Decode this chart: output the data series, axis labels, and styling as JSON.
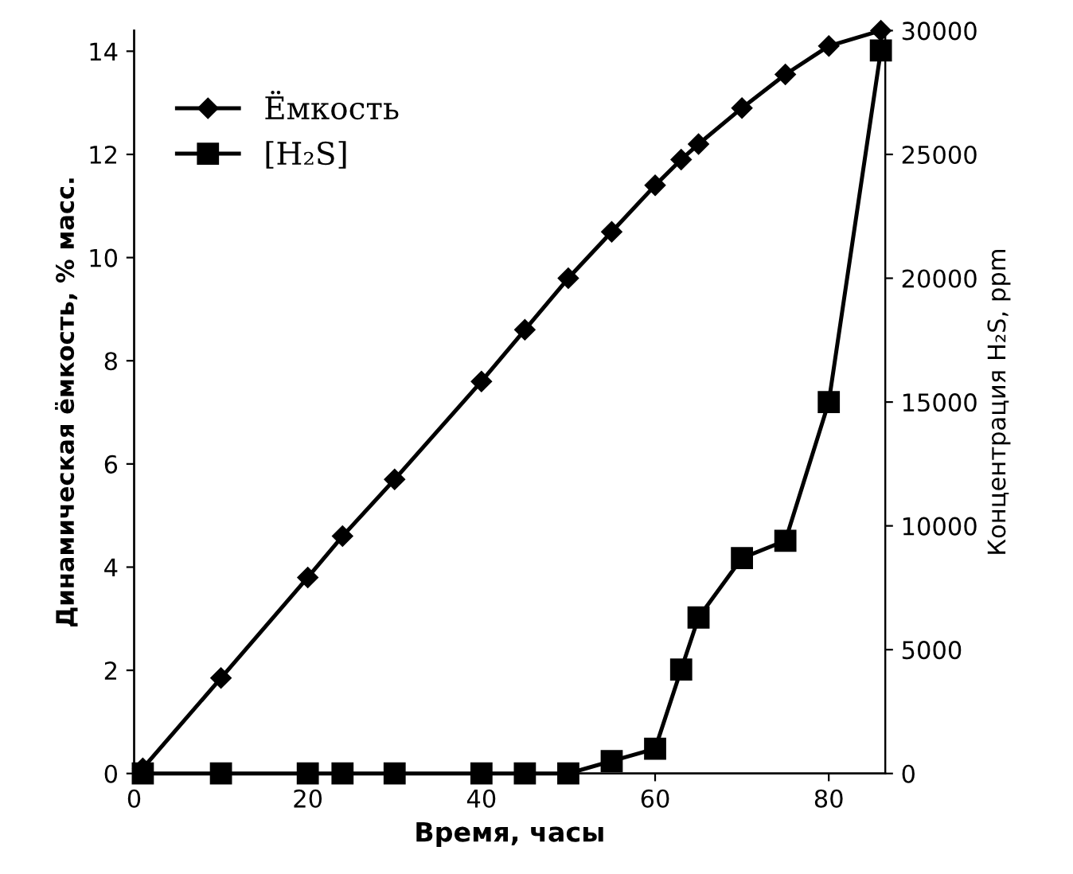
{
  "chart_data": {
    "type": "line",
    "xlabel": "Время, часы",
    "ylabel": "Динамическая ёмкость, % масс.",
    "y2label": "Концентрация H₂S, ppm",
    "xlim": [
      0,
      86.5
    ],
    "xticks": [
      0,
      20,
      40,
      60,
      80
    ],
    "ylim": [
      0,
      14.4
    ],
    "yticks": [
      0,
      2,
      4,
      6,
      8,
      10,
      12,
      14
    ],
    "y2lim": [
      0,
      30000
    ],
    "y2ticks": [
      0,
      5000,
      10000,
      15000,
      20000,
      25000,
      30000
    ],
    "grid": false,
    "legend": "top left",
    "series": [
      {
        "name": "Ёмкость",
        "color": "#000000",
        "marker": "diamond",
        "x": [
          1,
          10,
          20,
          24,
          30,
          40,
          45,
          50,
          55,
          60,
          63,
          65,
          70,
          75,
          80,
          86
        ],
        "values": [
          0.1,
          1.85,
          3.8,
          4.6,
          5.7,
          7.6,
          8.6,
          9.6,
          10.5,
          11.4,
          11.9,
          12.2,
          12.9,
          13.55,
          14.1,
          14.4
        ]
      },
      {
        "name": "[H₂S]",
        "color": "#000000",
        "marker": "square",
        "axis": "y2",
        "x": [
          1,
          10,
          20,
          24,
          30,
          40,
          45,
          50,
          55,
          60,
          63,
          65,
          70,
          75,
          80,
          86
        ],
        "values": [
          0,
          0,
          0,
          0,
          0,
          0,
          0,
          0,
          500,
          1000,
          4200,
          6300,
          8700,
          9400,
          15000,
          29200
        ]
      }
    ]
  }
}
